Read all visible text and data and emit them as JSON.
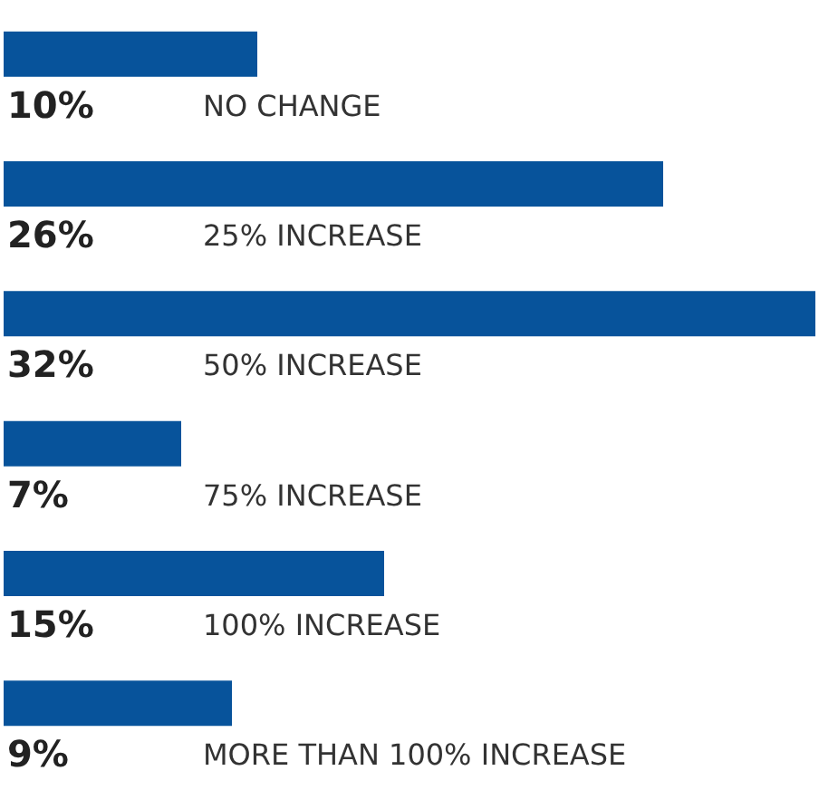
{
  "chart_data": {
    "type": "bar",
    "orientation": "horizontal",
    "categories": [
      "NO CHANGE",
      "25% INCREASE",
      "50% INCREASE",
      "75% INCREASE",
      "100% INCREASE",
      "MORE THAN 100% INCREASE"
    ],
    "values": [
      10,
      26,
      32,
      7,
      15,
      9
    ],
    "value_labels": [
      "10%",
      "26%",
      "32%",
      "7%",
      "15%",
      "9%"
    ],
    "color": "#07539b",
    "tick_labels": false
  }
}
